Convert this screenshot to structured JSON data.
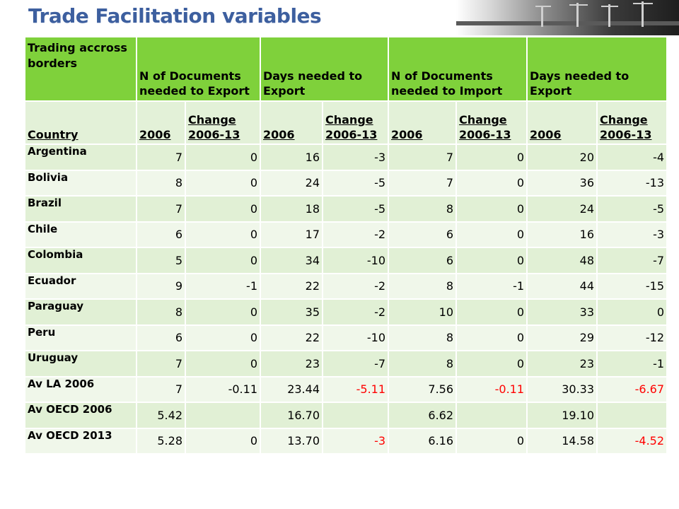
{
  "slide": {
    "title": "Trade Facilitation variables"
  },
  "table": {
    "header_groups": [
      "Trading accross borders",
      "N of Documents needed to Export",
      "Days needed to Export",
      "N of Documents needed to Import",
      "Days needed to Export"
    ],
    "subheaders": [
      "Country",
      "2006",
      "Change 2006-13",
      "2006",
      "Change 2006-13",
      "2006",
      "Change 2006-13",
      "2006",
      "Change 2006-13"
    ],
    "rows": [
      {
        "country": "Argentina",
        "cells": [
          "7",
          "0",
          "16",
          "-3",
          "7",
          "0",
          "20",
          "-4"
        ]
      },
      {
        "country": "Bolivia",
        "cells": [
          "8",
          "0",
          "24",
          "-5",
          "7",
          "0",
          "36",
          "-13"
        ]
      },
      {
        "country": "Brazil",
        "cells": [
          "7",
          "0",
          "18",
          "-5",
          "8",
          "0",
          "24",
          "-5"
        ]
      },
      {
        "country": "Chile",
        "cells": [
          "6",
          "0",
          "17",
          "-2",
          "6",
          "0",
          "16",
          "-3"
        ]
      },
      {
        "country": "Colombia",
        "cells": [
          "5",
          "0",
          "34",
          "-10",
          "6",
          "0",
          "48",
          "-7"
        ]
      },
      {
        "country": "Ecuador",
        "cells": [
          "9",
          "-1",
          "22",
          "-2",
          "8",
          "-1",
          "44",
          "-15"
        ]
      },
      {
        "country": "Paraguay",
        "cells": [
          "8",
          "0",
          "35",
          "-2",
          "10",
          "0",
          "33",
          "0"
        ]
      },
      {
        "country": "Peru",
        "cells": [
          "6",
          "0",
          "22",
          "-10",
          "8",
          "0",
          "29",
          "-12"
        ]
      },
      {
        "country": "Uruguay",
        "cells": [
          "7",
          "0",
          "23",
          "-7",
          "8",
          "0",
          "23",
          "-1"
        ]
      },
      {
        "country": "Av LA 2006",
        "cells": [
          "7",
          "-0.11",
          "23.44",
          "-5.11",
          "7.56",
          "-0.11",
          "30.33",
          "-6.67"
        ],
        "red_cols": [
          3,
          5,
          7
        ]
      },
      {
        "country": "Av OECD 2006",
        "cells": [
          "5.42",
          "",
          "16.70",
          "",
          "6.62",
          "",
          "19.10",
          ""
        ]
      },
      {
        "country": "Av OECD 2013",
        "cells": [
          "5.28",
          "0",
          "13.70",
          "-3",
          "6.16",
          "0",
          "14.58",
          "-4.52"
        ],
        "red_cols": [
          3,
          7
        ]
      }
    ]
  },
  "colors": {
    "title": "#3d5f9f",
    "header": "#7fd13b",
    "negative": "#ff0000"
  }
}
